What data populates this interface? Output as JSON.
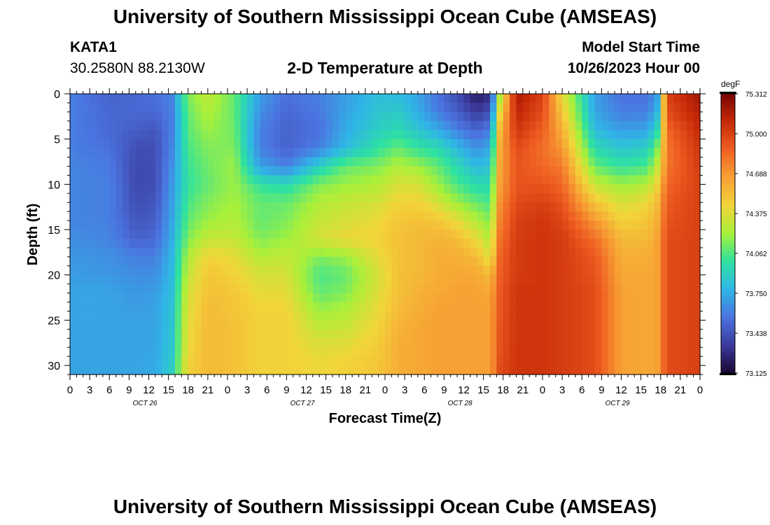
{
  "page": {
    "title_top": "University of Southern Mississippi Ocean Cube (AMSEAS)",
    "title_bottom": "University of Southern Mississippi Ocean Cube (AMSEAS)",
    "station": "KATA1",
    "coords": "30.2580N  88.2130W",
    "plot_title": "2-D Temperature at Depth",
    "model_start_label": "Model Start Time",
    "model_start_value": "10/26/2023 Hour 00"
  },
  "chart_data": {
    "type": "heatmap",
    "title": "2-D Temperature at Depth",
    "xlabel": "Forecast Time(Z)",
    "ylabel": "Depth (ft)",
    "x_range_hours": [
      0,
      96
    ],
    "x_tick_labels": [
      "0",
      "3",
      "6",
      "9",
      "12",
      "15",
      "18",
      "21",
      "0",
      "3",
      "6",
      "9",
      "12",
      "15",
      "18",
      "21",
      "0",
      "3",
      "6",
      "9",
      "12",
      "15",
      "18",
      "21",
      "0",
      "3",
      "6",
      "9",
      "12",
      "15",
      "18",
      "21",
      "0"
    ],
    "date_labels": [
      {
        "hour": 11,
        "label": "OCT 26"
      },
      {
        "hour": 35,
        "label": "OCT 27"
      },
      {
        "hour": 59,
        "label": "OCT 28"
      },
      {
        "hour": 83,
        "label": "OCT 29"
      }
    ],
    "y_range_ft": [
      0,
      31
    ],
    "y_ticks": [
      0,
      5,
      10,
      15,
      20,
      25,
      30
    ],
    "colorbar": {
      "unit": "degF",
      "min": 73.125,
      "max": 75.312,
      "tick_labels": [
        "75.312",
        "75.000",
        "74.688",
        "74.375",
        "74.062",
        "73.750",
        "73.438",
        "73.125"
      ],
      "stops": [
        "#1a0633",
        "#3b3a9c",
        "#4b74e0",
        "#2fb6e6",
        "#2ee2a0",
        "#a8f03a",
        "#f2d53a",
        "#f7a034",
        "#ef5f22",
        "#c62a08",
        "#7a0403"
      ]
    },
    "depths_ft": [
      0,
      2,
      4,
      6,
      8,
      10,
      12,
      14,
      16,
      18,
      20,
      22,
      24,
      26,
      28,
      30,
      31
    ],
    "times_h": [
      0,
      6,
      10,
      13,
      15.5,
      18,
      21,
      25,
      29,
      33,
      38,
      42,
      47,
      50,
      53,
      56,
      59,
      62,
      64,
      65.5,
      68,
      72,
      75,
      80,
      84,
      88,
      89.5,
      91,
      96
    ],
    "temperature_degF": [
      [
        73.6,
        73.6,
        73.6,
        73.6,
        73.62,
        73.62,
        73.62,
        73.62,
        73.65,
        73.68,
        73.7,
        73.72,
        73.72,
        73.72,
        73.72,
        73.72,
        73.72
      ],
      [
        73.5,
        73.52,
        73.52,
        73.55,
        73.58,
        73.6,
        73.6,
        73.6,
        73.62,
        73.65,
        73.68,
        73.72,
        73.72,
        73.72,
        73.72,
        73.72,
        73.72
      ],
      [
        73.52,
        73.52,
        73.48,
        73.42,
        73.4,
        73.4,
        73.42,
        73.45,
        73.5,
        73.6,
        73.65,
        73.68,
        73.7,
        73.72,
        73.72,
        73.72,
        73.72
      ],
      [
        73.55,
        73.52,
        73.45,
        73.42,
        73.42,
        73.42,
        73.45,
        73.48,
        73.52,
        73.6,
        73.65,
        73.7,
        73.72,
        73.72,
        73.72,
        73.74,
        73.74
      ],
      [
        73.62,
        73.6,
        73.6,
        73.62,
        73.65,
        73.68,
        73.7,
        73.72,
        73.75,
        73.78,
        73.8,
        73.82,
        73.84,
        73.85,
        73.86,
        73.88,
        73.9
      ],
      [
        74.15,
        74.1,
        74.08,
        74.05,
        74.02,
        74.0,
        74.05,
        74.1,
        74.15,
        74.25,
        74.3,
        74.35,
        74.38,
        74.4,
        74.42,
        74.45,
        74.45
      ],
      [
        74.3,
        74.25,
        74.2,
        74.15,
        74.12,
        74.1,
        74.15,
        74.2,
        74.3,
        74.45,
        74.5,
        74.52,
        74.55,
        74.55,
        74.55,
        74.55,
        74.55
      ],
      [
        74.1,
        74.1,
        74.12,
        74.15,
        74.2,
        74.2,
        74.22,
        74.25,
        74.3,
        74.4,
        74.45,
        74.5,
        74.5,
        74.52,
        74.52,
        74.52,
        74.52
      ],
      [
        73.7,
        73.65,
        73.6,
        73.6,
        73.7,
        74.0,
        74.1,
        74.1,
        74.15,
        74.25,
        74.35,
        74.4,
        74.45,
        74.45,
        74.45,
        74.45,
        74.45
      ],
      [
        73.55,
        73.52,
        73.5,
        73.5,
        73.6,
        73.95,
        74.1,
        74.15,
        74.2,
        74.3,
        74.35,
        74.4,
        74.45,
        74.45,
        74.45,
        74.45,
        74.45
      ],
      [
        73.6,
        73.58,
        73.55,
        73.6,
        73.9,
        74.15,
        74.25,
        74.3,
        74.35,
        74.15,
        74.05,
        74.1,
        74.2,
        74.3,
        74.38,
        74.42,
        74.42
      ],
      [
        73.7,
        73.72,
        73.75,
        73.8,
        74.1,
        74.2,
        74.3,
        74.35,
        74.42,
        74.2,
        74.1,
        74.15,
        74.25,
        74.32,
        74.4,
        74.45,
        74.45
      ],
      [
        73.82,
        73.85,
        73.9,
        74.0,
        74.15,
        74.25,
        74.35,
        74.42,
        74.45,
        74.4,
        74.35,
        74.38,
        74.42,
        74.45,
        74.48,
        74.5,
        74.5
      ],
      [
        73.8,
        73.88,
        73.95,
        74.1,
        74.25,
        74.35,
        74.45,
        74.5,
        74.52,
        74.52,
        74.52,
        74.52,
        74.55,
        74.58,
        74.6,
        74.6,
        74.6
      ],
      [
        73.72,
        73.75,
        73.85,
        74.0,
        74.2,
        74.35,
        74.45,
        74.52,
        74.55,
        74.55,
        74.55,
        74.58,
        74.6,
        74.62,
        74.62,
        74.62,
        74.62
      ],
      [
        73.55,
        73.6,
        73.75,
        73.95,
        74.1,
        74.2,
        74.35,
        74.5,
        74.58,
        74.6,
        74.6,
        74.62,
        74.65,
        74.65,
        74.65,
        74.65,
        74.65
      ],
      [
        73.42,
        73.48,
        73.6,
        73.8,
        73.95,
        74.05,
        74.2,
        74.4,
        74.55,
        74.6,
        74.62,
        74.65,
        74.65,
        74.65,
        74.65,
        74.65,
        74.65
      ],
      [
        73.2,
        73.35,
        73.5,
        73.65,
        73.8,
        73.95,
        74.1,
        74.25,
        74.4,
        74.55,
        74.62,
        74.65,
        74.65,
        74.65,
        74.65,
        74.65,
        74.65
      ],
      [
        73.3,
        73.42,
        73.6,
        73.75,
        73.85,
        73.95,
        74.05,
        74.15,
        74.25,
        74.35,
        74.55,
        74.62,
        74.65,
        74.65,
        74.65,
        74.65,
        74.65
      ],
      [
        74.2,
        74.4,
        74.55,
        74.6,
        74.62,
        74.65,
        74.7,
        74.75,
        74.8,
        74.85,
        74.88,
        74.9,
        74.9,
        74.92,
        74.92,
        74.95,
        74.95
      ],
      [
        75.18,
        75.12,
        75.05,
        74.95,
        74.92,
        74.92,
        74.95,
        75.0,
        75.02,
        75.02,
        75.02,
        75.05,
        75.05,
        75.05,
        75.05,
        75.05,
        75.05
      ],
      [
        75.0,
        74.95,
        74.88,
        74.82,
        74.85,
        74.92,
        75.0,
        75.05,
        75.05,
        75.05,
        75.05,
        75.05,
        75.05,
        75.05,
        75.05,
        75.05,
        75.05
      ],
      [
        74.4,
        74.5,
        74.6,
        74.68,
        74.78,
        74.85,
        74.92,
        74.98,
        75.02,
        75.02,
        75.02,
        75.02,
        75.02,
        75.02,
        75.02,
        75.02,
        75.02
      ],
      [
        73.7,
        73.72,
        73.8,
        73.95,
        74.1,
        74.3,
        74.5,
        74.68,
        74.82,
        74.9,
        74.92,
        74.95,
        74.95,
        74.95,
        74.95,
        74.95,
        74.95
      ],
      [
        73.55,
        73.6,
        73.7,
        73.85,
        74.0,
        74.2,
        74.35,
        74.45,
        74.55,
        74.6,
        74.62,
        74.65,
        74.65,
        74.65,
        74.65,
        74.65,
        74.65
      ],
      [
        73.55,
        73.6,
        73.72,
        73.9,
        74.05,
        74.25,
        74.42,
        74.5,
        74.55,
        74.6,
        74.62,
        74.62,
        74.62,
        74.62,
        74.62,
        74.62,
        74.62
      ],
      [
        73.7,
        73.8,
        73.95,
        74.15,
        74.3,
        74.45,
        74.55,
        74.6,
        74.65,
        74.65,
        74.65,
        74.65,
        74.65,
        74.65,
        74.65,
        74.65,
        74.65
      ],
      [
        75.0,
        74.95,
        74.85,
        74.8,
        74.8,
        74.85,
        74.9,
        74.92,
        74.95,
        74.95,
        74.95,
        74.95,
        74.95,
        74.95,
        74.95,
        74.95,
        74.95
      ],
      [
        75.2,
        75.15,
        75.1,
        75.05,
        75.02,
        75.0,
        75.0,
        75.0,
        75.0,
        75.0,
        75.0,
        75.0,
        75.0,
        75.0,
        75.0,
        75.0,
        75.0
      ]
    ]
  }
}
